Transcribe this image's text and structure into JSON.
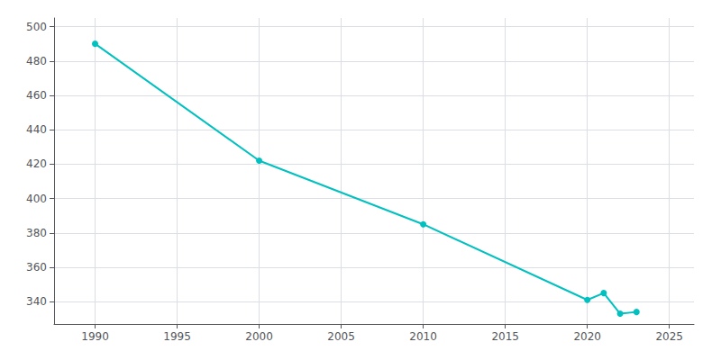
{
  "chart_data": {
    "type": "line",
    "x": [
      1990,
      2000,
      2010,
      2020,
      2021,
      2022,
      2023
    ],
    "values": [
      490,
      422,
      385,
      341,
      345,
      333,
      334
    ],
    "color": "#00C0C0",
    "marker": "circle",
    "xlim": [
      1987.5,
      2026.5
    ],
    "xticks": [
      1990,
      1995,
      2000,
      2005,
      2010,
      2015,
      2020,
      2025
    ],
    "ylim": [
      327,
      505
    ],
    "yticks": [
      340,
      360,
      380,
      400,
      420,
      440,
      460,
      480,
      500
    ],
    "grid": true
  }
}
